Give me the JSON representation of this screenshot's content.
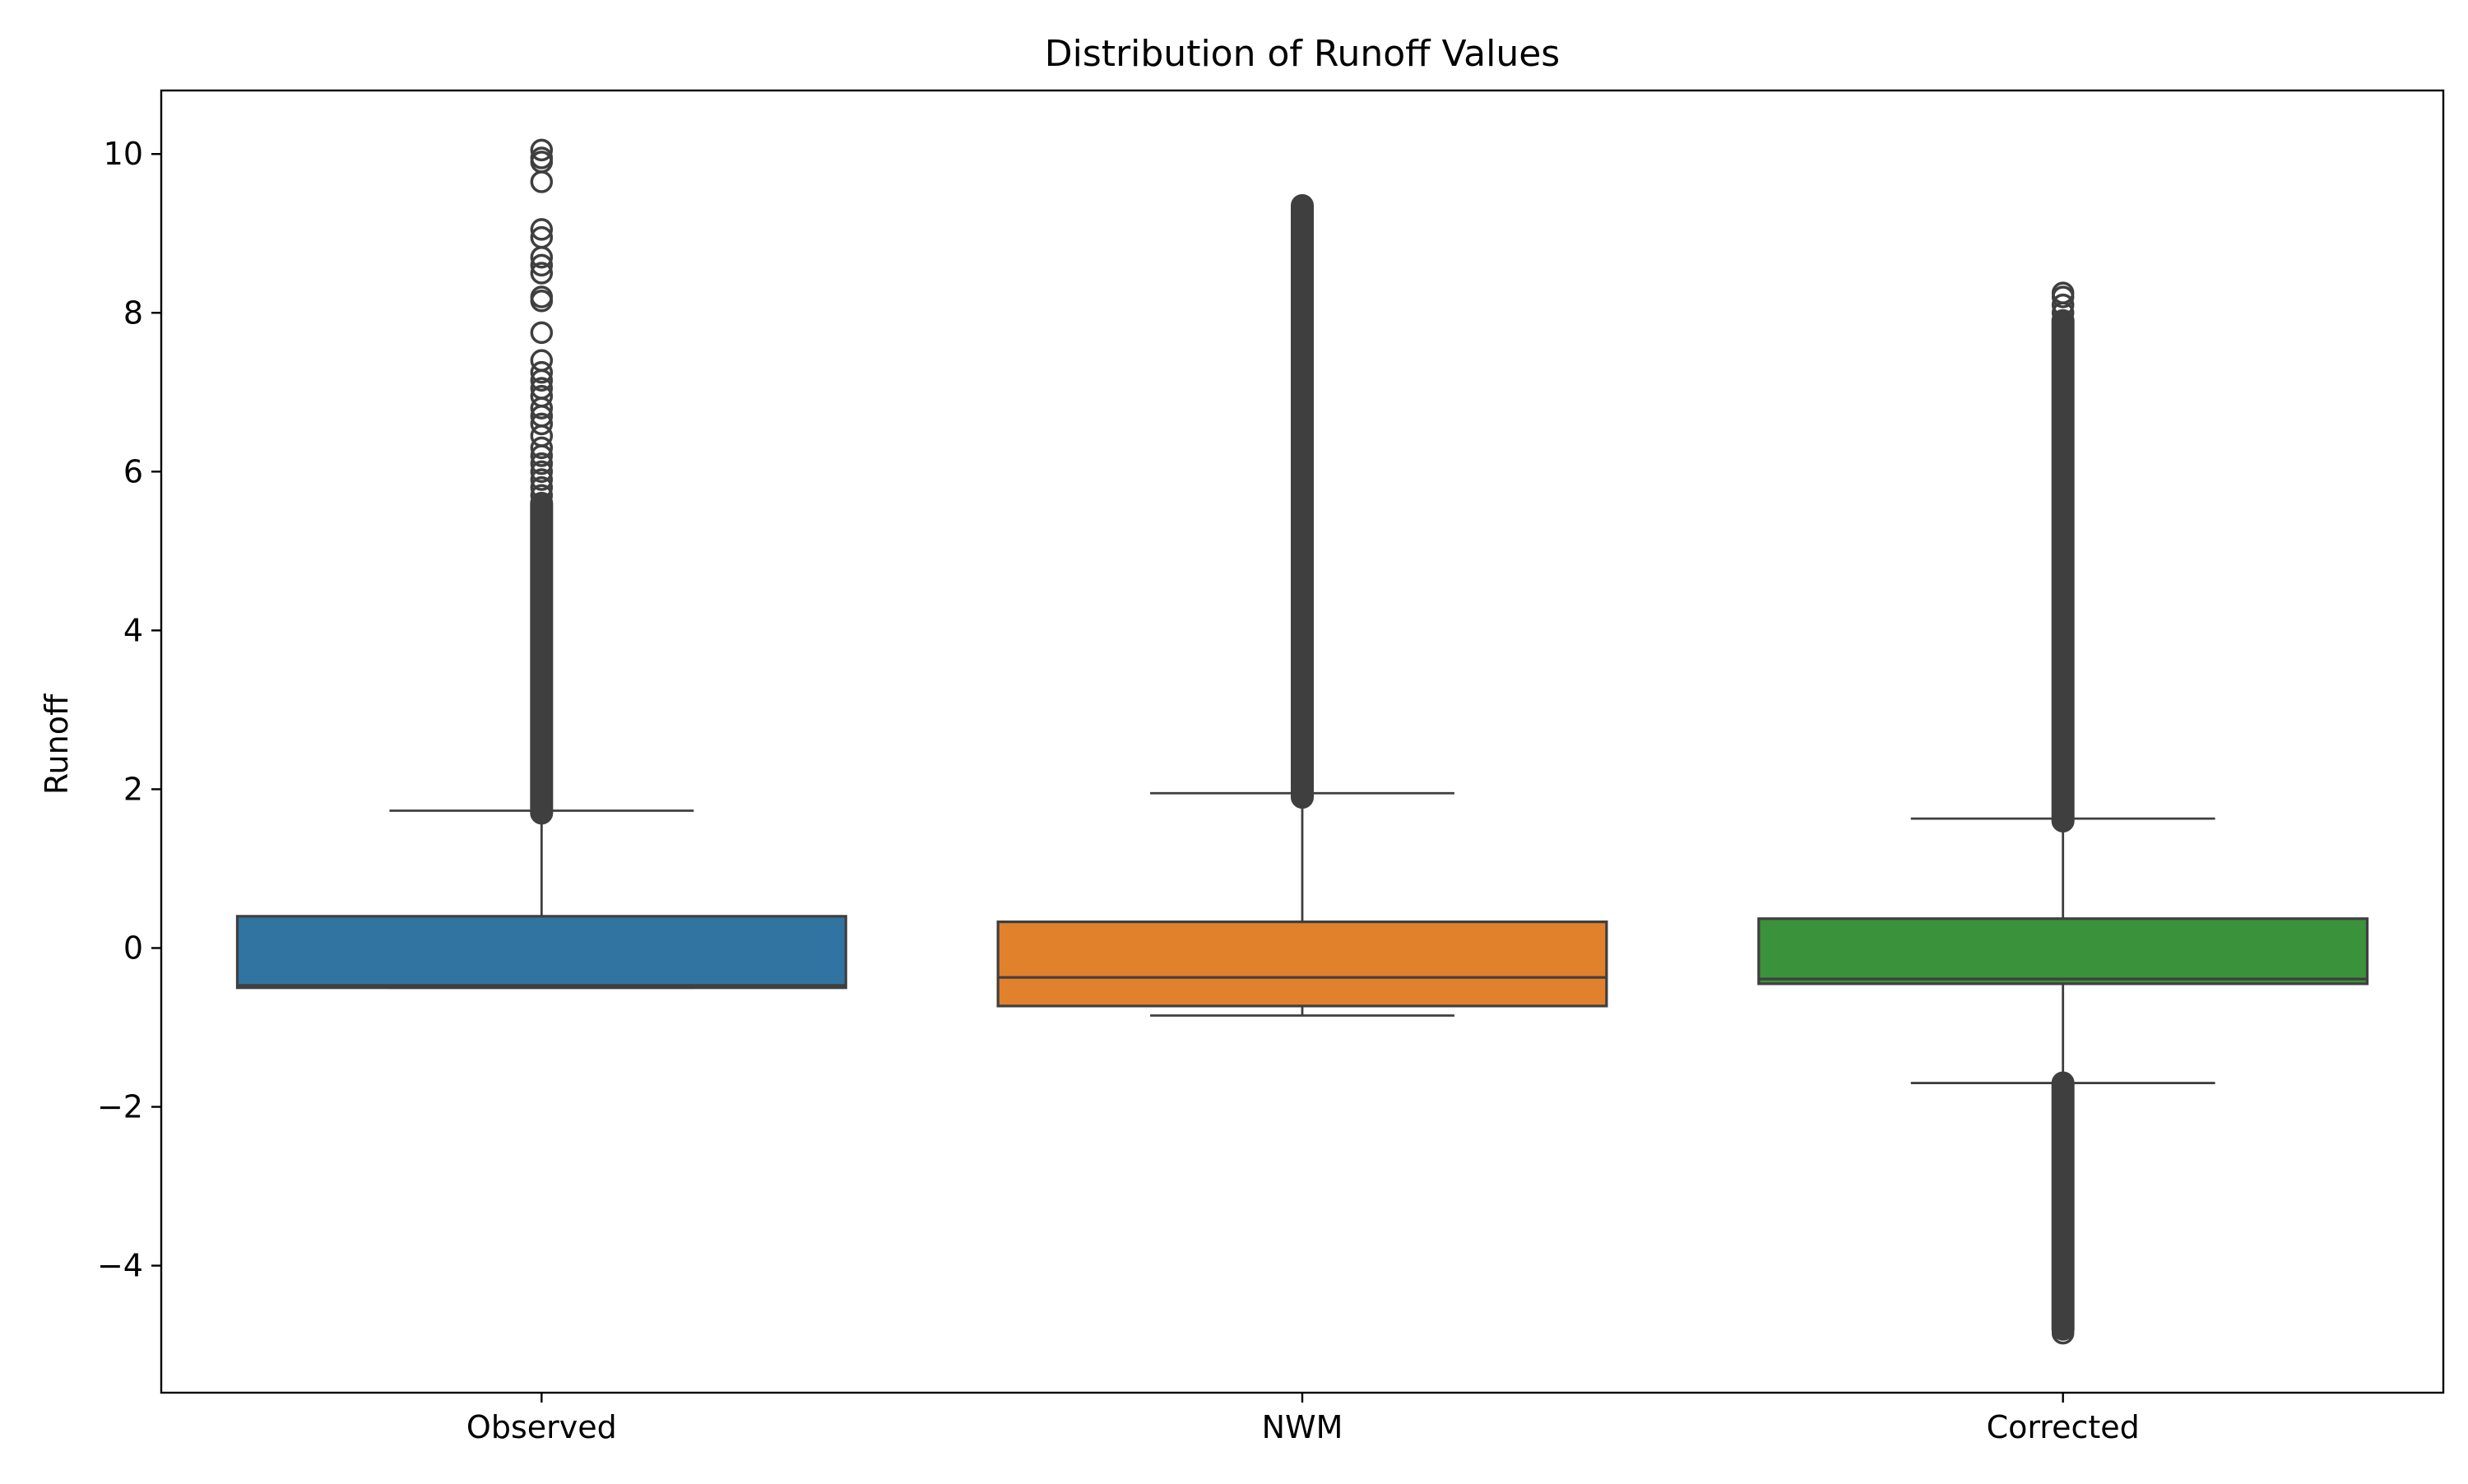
{
  "chart_data": {
    "type": "box",
    "title": "Distribution of Runoff Values",
    "xlabel": "",
    "ylabel": "Runoff",
    "categories": [
      "Observed",
      "NWM",
      "Corrected"
    ],
    "ylim": [
      -5.6,
      10.8
    ],
    "yticks": [
      {
        "value": 10,
        "label": "10"
      },
      {
        "value": 8,
        "label": "8"
      },
      {
        "value": 6,
        "label": "6"
      },
      {
        "value": 4,
        "label": "4"
      },
      {
        "value": 2,
        "label": "2"
      },
      {
        "value": 0,
        "label": "0"
      },
      {
        "value": -2,
        "label": "−2"
      },
      {
        "value": -4,
        "label": "−4"
      }
    ],
    "grid": false,
    "legend": "none",
    "boxes": [
      {
        "name": "Observed",
        "color": "#3274a1",
        "whisker_low": -0.5,
        "q1": -0.5,
        "median": -0.47,
        "q3": 0.4,
        "whisker_high": 1.73,
        "outlier_dense_range": [
          1.7,
          5.6
        ],
        "outliers_sparse": [
          5.7,
          5.8,
          5.9,
          6.0,
          6.1,
          6.2,
          6.3,
          6.45,
          6.6,
          6.7,
          6.8,
          6.95,
          7.05,
          7.15,
          7.25,
          7.4,
          7.75,
          8.15,
          8.2,
          8.5,
          8.6,
          8.7,
          8.95,
          9.05,
          9.65,
          9.9,
          9.95,
          10.05
        ]
      },
      {
        "name": "NWM",
        "color": "#e1812c",
        "whisker_low": -0.85,
        "q1": -0.73,
        "median": -0.37,
        "q3": 0.33,
        "whisker_high": 1.95,
        "outlier_dense_range": [
          1.9,
          9.35
        ],
        "outliers_sparse": []
      },
      {
        "name": "Corrected",
        "color": "#3a923a",
        "whisker_low": -1.7,
        "q1": -0.45,
        "median": -0.39,
        "q3": 0.37,
        "whisker_high": 1.63,
        "outlier_dense_range": [
          1.6,
          7.9
        ],
        "outliers_sparse": [
          8.0,
          8.1,
          8.2,
          8.25
        ],
        "outlier_dense_range_low": [
          -4.8,
          -1.7
        ],
        "outliers_sparse_low": [
          -4.85
        ]
      }
    ]
  }
}
